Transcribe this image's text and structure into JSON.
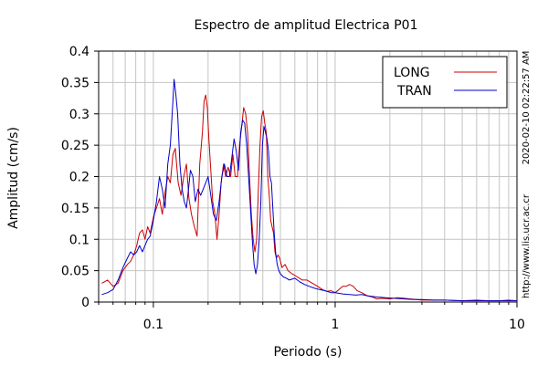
{
  "chart_data": {
    "type": "line",
    "title": "Espectro de amplitud Electrica P01",
    "xlabel": "Periodo (s)",
    "ylabel": "Amplitud (cm/s)",
    "x_scale": "log",
    "xlim": [
      0.05,
      10
    ],
    "ylim": [
      0,
      0.4
    ],
    "x_ticks": [
      0.1,
      1,
      10
    ],
    "x_tick_labels": [
      "0.1",
      "1",
      "10"
    ],
    "y_ticks": [
      0,
      0.05,
      0.1,
      0.15,
      0.2,
      0.25,
      0.3,
      0.35,
      0.4
    ],
    "y_tick_labels": [
      "0",
      "0.05",
      "0.1",
      "0.15",
      "0.2",
      "0.25",
      "0.3",
      "0.35",
      "0.4"
    ],
    "grid": true,
    "legend_position": "top-right",
    "series": [
      {
        "name": "LONG",
        "color": "#cc0000",
        "x": [
          0.052,
          0.056,
          0.06,
          0.064,
          0.068,
          0.072,
          0.075,
          0.078,
          0.081,
          0.084,
          0.087,
          0.09,
          0.093,
          0.096,
          0.1,
          0.104,
          0.108,
          0.112,
          0.116,
          0.12,
          0.124,
          0.128,
          0.132,
          0.137,
          0.142,
          0.147,
          0.152,
          0.157,
          0.162,
          0.168,
          0.174,
          0.18,
          0.186,
          0.19,
          0.194,
          0.198,
          0.202,
          0.207,
          0.212,
          0.218,
          0.224,
          0.23,
          0.236,
          0.243,
          0.25,
          0.258,
          0.266,
          0.274,
          0.282,
          0.29,
          0.298,
          0.306,
          0.314,
          0.322,
          0.33,
          0.338,
          0.346,
          0.354,
          0.362,
          0.37,
          0.378,
          0.386,
          0.394,
          0.402,
          0.41,
          0.418,
          0.426,
          0.434,
          0.442,
          0.45,
          0.458,
          0.466,
          0.475,
          0.485,
          0.495,
          0.51,
          0.53,
          0.55,
          0.58,
          0.62,
          0.66,
          0.7,
          0.75,
          0.8,
          0.85,
          0.9,
          0.95,
          1.0,
          1.05,
          1.1,
          1.15,
          1.2,
          1.26,
          1.32,
          1.4,
          1.5,
          1.6,
          1.7,
          1.8,
          2.0,
          2.2,
          2.4,
          2.6,
          2.8,
          3.0,
          3.5,
          4.0,
          5.0,
          6.0,
          7.0,
          8.0,
          9.0,
          10.0
        ],
        "y": [
          0.03,
          0.035,
          0.025,
          0.03,
          0.05,
          0.06,
          0.065,
          0.075,
          0.09,
          0.11,
          0.115,
          0.1,
          0.12,
          0.11,
          0.135,
          0.15,
          0.165,
          0.14,
          0.175,
          0.2,
          0.19,
          0.235,
          0.245,
          0.19,
          0.17,
          0.2,
          0.22,
          0.165,
          0.14,
          0.12,
          0.105,
          0.22,
          0.27,
          0.32,
          0.33,
          0.31,
          0.26,
          0.21,
          0.16,
          0.14,
          0.1,
          0.14,
          0.19,
          0.22,
          0.2,
          0.215,
          0.2,
          0.235,
          0.2,
          0.2,
          0.25,
          0.28,
          0.31,
          0.3,
          0.27,
          0.2,
          0.14,
          0.1,
          0.08,
          0.1,
          0.18,
          0.25,
          0.295,
          0.305,
          0.285,
          0.27,
          0.2,
          0.17,
          0.13,
          0.12,
          0.11,
          0.08,
          0.07,
          0.075,
          0.07,
          0.055,
          0.06,
          0.05,
          0.045,
          0.04,
          0.035,
          0.035,
          0.03,
          0.025,
          0.02,
          0.017,
          0.018,
          0.015,
          0.02,
          0.025,
          0.025,
          0.028,
          0.025,
          0.018,
          0.015,
          0.01,
          0.008,
          0.005,
          0.006,
          0.005,
          0.007,
          0.006,
          0.005,
          0.004,
          0.003,
          0.003,
          0.003,
          0.002,
          0.003,
          0.002,
          0.002,
          0.003,
          0.002
        ]
      },
      {
        "name": "TRAN",
        "color": "#0000cc",
        "x": [
          0.052,
          0.056,
          0.06,
          0.064,
          0.068,
          0.072,
          0.075,
          0.078,
          0.081,
          0.084,
          0.087,
          0.09,
          0.093,
          0.096,
          0.1,
          0.104,
          0.108,
          0.112,
          0.116,
          0.12,
          0.124,
          0.128,
          0.13,
          0.133,
          0.136,
          0.14,
          0.144,
          0.148,
          0.152,
          0.156,
          0.16,
          0.165,
          0.17,
          0.176,
          0.182,
          0.188,
          0.194,
          0.2,
          0.207,
          0.214,
          0.222,
          0.23,
          0.238,
          0.246,
          0.254,
          0.262,
          0.27,
          0.278,
          0.286,
          0.294,
          0.302,
          0.31,
          0.318,
          0.326,
          0.334,
          0.342,
          0.35,
          0.358,
          0.366,
          0.374,
          0.382,
          0.39,
          0.398,
          0.406,
          0.414,
          0.422,
          0.43,
          0.438,
          0.446,
          0.454,
          0.462,
          0.47,
          0.48,
          0.49,
          0.5,
          0.52,
          0.54,
          0.56,
          0.6,
          0.64,
          0.68,
          0.72,
          0.77,
          0.82,
          0.88,
          0.95,
          1.0,
          1.1,
          1.2,
          1.3,
          1.4,
          1.5,
          1.7,
          1.9,
          2.1,
          2.4,
          2.7,
          3.0,
          3.5,
          4.0,
          5.0,
          6.0,
          7.0,
          8.0,
          9.0,
          10.0
        ],
        "y": [
          0.012,
          0.015,
          0.02,
          0.035,
          0.055,
          0.07,
          0.08,
          0.075,
          0.08,
          0.09,
          0.08,
          0.09,
          0.1,
          0.105,
          0.13,
          0.16,
          0.2,
          0.18,
          0.15,
          0.22,
          0.25,
          0.32,
          0.355,
          0.33,
          0.3,
          0.22,
          0.18,
          0.16,
          0.15,
          0.18,
          0.21,
          0.2,
          0.16,
          0.18,
          0.17,
          0.18,
          0.19,
          0.2,
          0.17,
          0.14,
          0.13,
          0.16,
          0.2,
          0.22,
          0.2,
          0.2,
          0.23,
          0.26,
          0.24,
          0.21,
          0.27,
          0.29,
          0.285,
          0.25,
          0.2,
          0.15,
          0.1,
          0.06,
          0.045,
          0.06,
          0.1,
          0.16,
          0.25,
          0.28,
          0.27,
          0.26,
          0.24,
          0.2,
          0.19,
          0.15,
          0.11,
          0.08,
          0.06,
          0.05,
          0.045,
          0.04,
          0.038,
          0.035,
          0.038,
          0.032,
          0.028,
          0.025,
          0.022,
          0.02,
          0.018,
          0.015,
          0.015,
          0.013,
          0.012,
          0.011,
          0.012,
          0.01,
          0.008,
          0.007,
          0.006,
          0.005,
          0.004,
          0.004,
          0.003,
          0.003,
          0.002,
          0.002,
          0.002,
          0.002,
          0.002,
          0.002
        ]
      }
    ],
    "side_text": {
      "timestamp": "2020-02-10 02:22:57 AM",
      "url": "http://www.lis.ucr.ac.cr"
    }
  }
}
